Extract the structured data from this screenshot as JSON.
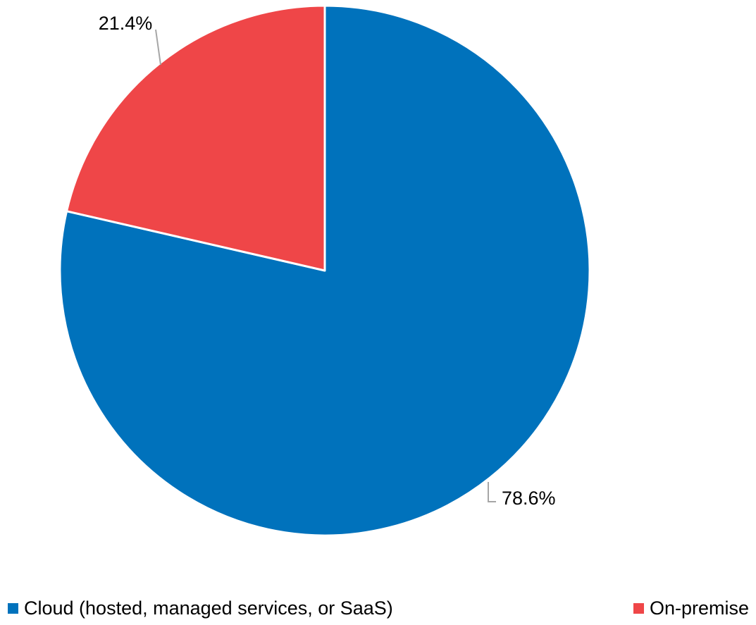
{
  "chart_data": {
    "type": "pie",
    "title": "",
    "start_angle_deg": 0,
    "direction": "clockwise",
    "slices": [
      {
        "name": "Cloud (hosted, managed services, or SaaS)",
        "value": 78.6,
        "label": "78.6%",
        "color": "#0072BC"
      },
      {
        "name": "On-premise",
        "value": 21.4,
        "label": "21.4%",
        "color": "#EF4648"
      }
    ],
    "legend_position": "bottom"
  }
}
